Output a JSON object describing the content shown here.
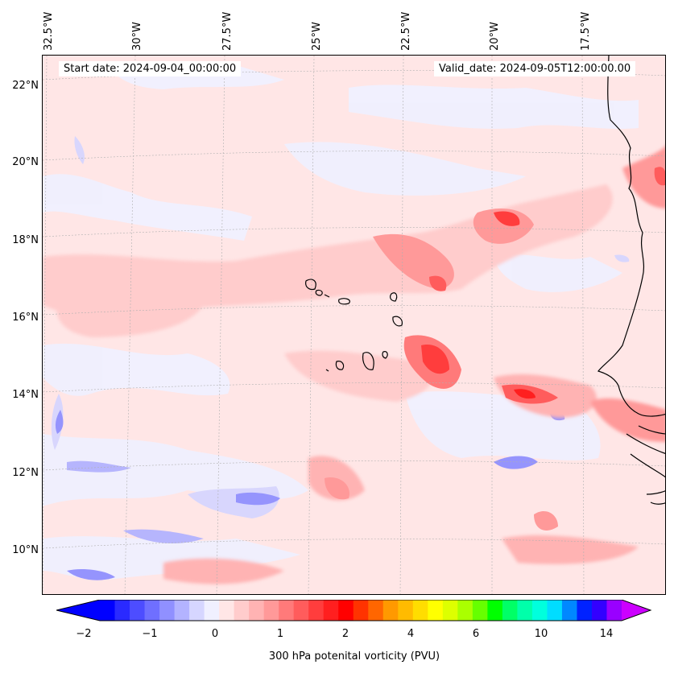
{
  "map": {
    "lon_labels": [
      "32.5°W",
      "30°W",
      "27.5°W",
      "25°W",
      "22.5°W",
      "20°W",
      "17.5°W"
    ],
    "lat_labels": [
      "22°N",
      "20°N",
      "18°N",
      "16°N",
      "14°N",
      "12°N",
      "10°N"
    ],
    "start_date": "Start date: 2024-09-04_00:00:00",
    "valid_date": "Valid_date: 2024-09-05T12:00:00.00",
    "background_color": "#ffe6e6",
    "coast_color": "#000000"
  },
  "colorbar": {
    "label": "300 hPa potenital vorticity (PVU)",
    "ticks": [
      "−2",
      "−1",
      "0",
      "1",
      "2",
      "4",
      "6",
      "10",
      "14"
    ],
    "colors": [
      "#0000ff",
      "#2a2aff",
      "#4d4dff",
      "#6f6fff",
      "#9090ff",
      "#b3b3ff",
      "#d6d6ff",
      "#f0f0ff",
      "#ffe6e6",
      "#ffcccc",
      "#ffb3b3",
      "#ff9999",
      "#ff7a7a",
      "#ff5c5c",
      "#ff3d3d",
      "#ff1f1f",
      "#ff0000",
      "#ff3300",
      "#ff6600",
      "#ff9900",
      "#ffbb00",
      "#ffdd00",
      "#ffff00",
      "#ddff00",
      "#aaff00",
      "#66ff00",
      "#00ff00",
      "#00ff66",
      "#00ffaa",
      "#00ffdd",
      "#00ddff",
      "#0088ff",
      "#0022ff",
      "#3300ff",
      "#9900ff"
    ],
    "extend_low_color": "#0000ff",
    "extend_high_color": "#cc00ff"
  }
}
